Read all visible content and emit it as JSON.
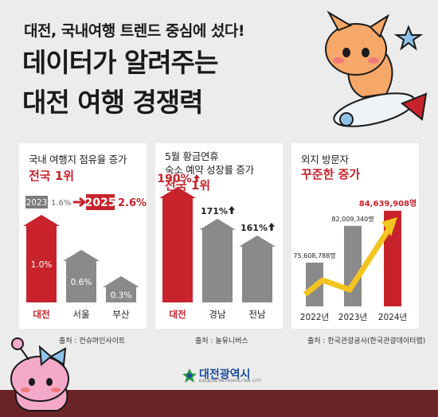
{
  "header": {
    "subtitle": "대전, 국내여행 트렌드 중심에 섰다!",
    "title_line1": "데이터가 알려주는",
    "title_line2": "대전 여행 경쟁력"
  },
  "colors": {
    "accent_red": "#c8232c",
    "bar_gray": "#8a8a8a",
    "arrow_yellow": "#f3c420",
    "band": "#6a2428"
  },
  "panel1": {
    "title": "국내 여행지 점유율 증가",
    "highlight": "전국 1위",
    "year_from": "2023",
    "value_from": "1.6%",
    "year_to": "2025",
    "value_to": "2.6%",
    "source": "출처 : 컨슈머인사이트"
  },
  "panel2": {
    "title_line1": "5월 황금연휴",
    "title_line2": "숙소 예약 성장률 증가",
    "highlight": "전국 1위",
    "source": "출처 : 놀유니버스"
  },
  "panel3": {
    "title": "외지 방문자",
    "highlight": "꾸준한 증가",
    "source": "출처 : 한국관광공사(한국관광데이터랩)"
  },
  "logo": {
    "name": "대전광역시",
    "sub": "DAEJEON METROPOLITAN CITY"
  },
  "chart_data": [
    {
      "type": "bar",
      "categories": [
        "대전",
        "서울",
        "부산"
      ],
      "values": [
        1.0,
        0.6,
        0.3
      ],
      "value_labels": [
        "1.0%",
        "0.6%",
        "0.3%"
      ],
      "highlight_index": 0
    },
    {
      "type": "bar",
      "categories": [
        "대전",
        "경남",
        "전남"
      ],
      "values": [
        190,
        171,
        161
      ],
      "value_labels": [
        "190%",
        "171%",
        "161%"
      ],
      "highlight_index": 0
    },
    {
      "type": "bar",
      "categories": [
        "2022년",
        "2023년",
        "2024년"
      ],
      "values": [
        75608788,
        82009340,
        84639908
      ],
      "value_labels": [
        "75,608,788명",
        "82,009,340명",
        "84,639,908명"
      ],
      "highlight_index": 2
    }
  ]
}
